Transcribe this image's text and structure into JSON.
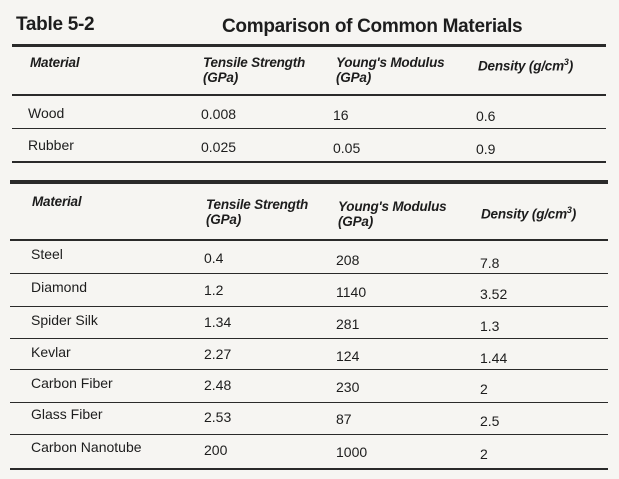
{
  "table_label": "Table 5-2",
  "table_title": "Comparison of Common Materials",
  "columns": {
    "material": "Material",
    "tensile_line1": "Tensile Strength",
    "tensile_line2": "(GPa)",
    "youngs_line1": "Young's Modulus",
    "youngs_line2": "(GPa)",
    "density_label": "Density (g/cm",
    "density_exp": "3",
    "density_close": ")"
  },
  "table1_rows": [
    {
      "material": "Wood",
      "tensile": "0.008",
      "youngs": "16",
      "density": "0.6"
    },
    {
      "material": "Rubber",
      "tensile": "0.025",
      "youngs": "0.05",
      "density": "0.9"
    }
  ],
  "table2_rows": [
    {
      "material": "Steel",
      "tensile": "0.4",
      "youngs": "208",
      "density": "7.8"
    },
    {
      "material": "Diamond",
      "tensile": "1.2",
      "youngs": "1140",
      "density": "3.52"
    },
    {
      "material": "Spider Silk",
      "tensile": "1.34",
      "youngs": "281",
      "density": "1.3"
    },
    {
      "material": "Kevlar",
      "tensile": "2.27",
      "youngs": "124",
      "density": "1.44"
    },
    {
      "material": "Carbon Fiber",
      "tensile": "2.48",
      "youngs": "230",
      "density": "2"
    },
    {
      "material": "Glass Fiber",
      "tensile": "2.53",
      "youngs": "87",
      "density": "2.5"
    },
    {
      "material": "Carbon Nanotube",
      "tensile": "200",
      "youngs": "1000",
      "density": "2"
    }
  ]
}
